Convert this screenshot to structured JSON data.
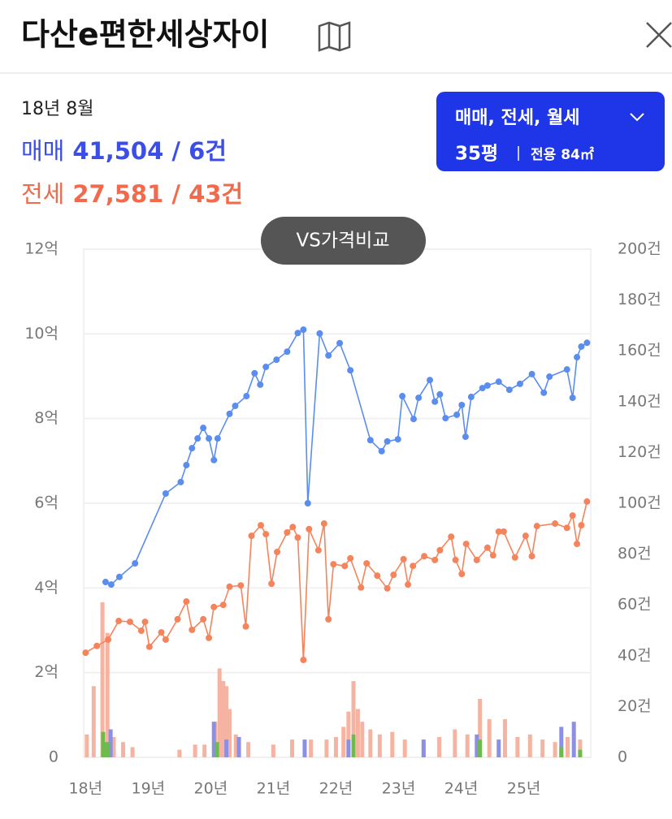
{
  "header": {
    "title": "다산e편한세상자이"
  },
  "summary": {
    "date": "18년 8월",
    "rows": [
      {
        "label": "매매",
        "text": "41,504 / 6건",
        "color": "#3b4ee8"
      },
      {
        "label": "전세",
        "text": "27,581 / 43건",
        "color": "#f26a4b"
      }
    ]
  },
  "filter": {
    "types": "매매, 전세, 월세",
    "size": "35평",
    "area": "전용 84㎡"
  },
  "compare_button": "VS가격비교",
  "chart_data": {
    "type": "line",
    "xlim": [
      17.97,
      26.07
    ],
    "xticks": [
      {
        "value": 18,
        "label": "18년"
      },
      {
        "value": 19,
        "label": "19년"
      },
      {
        "value": 20,
        "label": "20년"
      },
      {
        "value": 21,
        "label": "21년"
      },
      {
        "value": 22,
        "label": "22년"
      },
      {
        "value": 23,
        "label": "23년"
      },
      {
        "value": 24,
        "label": "24년"
      },
      {
        "value": 25,
        "label": "25년"
      }
    ],
    "ylim": [
      0,
      12
    ],
    "yticks": [
      0,
      {
        "value": 2,
        "label": "2억"
      },
      {
        "value": 4,
        "label": "4억"
      },
      {
        "value": 6,
        "label": "6억"
      },
      {
        "value": 8,
        "label": "8억"
      },
      {
        "value": 10,
        "label": "10억"
      },
      {
        "value": 12,
        "label": "12억"
      }
    ],
    "y2lim": [
      0,
      200
    ],
    "y2ticks": [
      0,
      {
        "value": 20,
        "label": "20건"
      },
      {
        "value": 40,
        "label": "40건"
      },
      {
        "value": 60,
        "label": "60건"
      },
      {
        "value": 80,
        "label": "80건"
      },
      {
        "value": 100,
        "label": "100건"
      },
      {
        "value": 120,
        "label": "120건"
      },
      {
        "value": 140,
        "label": "140건"
      },
      {
        "value": 160,
        "label": "160건"
      },
      {
        "value": 180,
        "label": "180건"
      },
      {
        "value": 200,
        "label": "200건"
      }
    ],
    "grid": true,
    "series": [
      {
        "type": "bar",
        "axis": "y2",
        "color": "#f5b3a2",
        "x": [
          18.02,
          18.13,
          18.27,
          18.35,
          18.45,
          18.6,
          18.75,
          19.5,
          19.75,
          19.9,
          20.07,
          20.14,
          20.2,
          20.25,
          20.3,
          20.4,
          20.6,
          21.0,
          21.3,
          21.6,
          21.85,
          22.0,
          22.12,
          22.2,
          22.28,
          22.35,
          22.42,
          22.55,
          22.7,
          22.9,
          23.1,
          23.4,
          23.65,
          23.9,
          24.1,
          24.3,
          24.45,
          24.7,
          24.9,
          25.1,
          25.3,
          25.5,
          25.7,
          25.9
        ],
        "values": [
          9,
          28,
          61,
          49,
          8,
          6,
          4,
          3,
          5,
          5,
          14,
          35,
          30,
          28,
          19,
          9,
          6,
          5,
          7,
          7,
          7,
          8,
          12,
          18,
          30,
          19,
          14,
          11,
          9,
          10,
          7,
          6,
          8,
          11,
          9,
          23,
          15,
          15,
          8,
          9,
          7,
          6,
          8,
          7
        ]
      },
      {
        "type": "bar",
        "axis": "y2",
        "color": "#8c8fe6",
        "x": [
          18.3,
          18.4,
          20.05,
          20.25,
          20.45,
          21.5,
          22.2,
          23.4,
          24.25,
          24.6,
          25.6,
          25.8
        ],
        "values": [
          6,
          11,
          14,
          7,
          8,
          7,
          7,
          7,
          9,
          7,
          12,
          14
        ]
      },
      {
        "type": "bar",
        "axis": "y2",
        "color": "#6dbb4a",
        "x": [
          18.28,
          18.35,
          20.1,
          22.28,
          24.3,
          25.6,
          25.9
        ],
        "values": [
          10,
          6,
          6,
          9,
          7,
          4,
          3
        ]
      },
      {
        "type": "line",
        "color": "#5b8def",
        "x": [
          18.32,
          18.41,
          18.54,
          18.79,
          19.28,
          19.52,
          19.61,
          19.7,
          19.79,
          19.88,
          19.97,
          20.05,
          20.11,
          20.3,
          20.39,
          20.57,
          20.7,
          20.79,
          20.88,
          21.05,
          21.22,
          21.39,
          21.48,
          21.55,
          21.74,
          21.88,
          22.06,
          22.23,
          22.55,
          22.73,
          22.82,
          22.99,
          23.06,
          23.24,
          23.32,
          23.5,
          23.58,
          23.66,
          23.75,
          23.93,
          24.01,
          24.07,
          24.16,
          24.34,
          24.42,
          24.6,
          24.77,
          24.94,
          25.13,
          25.32,
          25.41,
          25.69,
          25.78,
          25.85,
          25.92,
          26.01
        ],
        "values": [
          4.14,
          4.08,
          4.26,
          4.58,
          6.23,
          6.5,
          6.9,
          7.3,
          7.53,
          7.78,
          7.53,
          7.02,
          7.53,
          8.11,
          8.3,
          8.53,
          9.07,
          8.8,
          9.22,
          9.39,
          9.58,
          10.02,
          10.1,
          6.0,
          10.01,
          9.49,
          9.78,
          9.14,
          7.49,
          7.23,
          7.46,
          7.51,
          8.53,
          7.99,
          8.49,
          8.91,
          8.4,
          8.57,
          8.01,
          8.09,
          8.32,
          7.57,
          8.51,
          8.72,
          8.78,
          8.87,
          8.68,
          8.82,
          9.05,
          8.61,
          8.99,
          9.16,
          8.49,
          9.45,
          9.7,
          9.79
        ]
      },
      {
        "type": "line",
        "color": "#f5845c",
        "x": [
          18.0,
          18.18,
          18.36,
          18.53,
          18.71,
          18.89,
          18.95,
          19.02,
          19.21,
          19.28,
          19.47,
          19.61,
          19.7,
          19.88,
          19.97,
          20.05,
          20.2,
          20.3,
          20.48,
          20.56,
          20.65,
          20.8,
          20.88,
          20.97,
          21.06,
          21.22,
          21.31,
          21.39,
          21.48,
          21.57,
          21.72,
          21.81,
          21.88,
          21.96,
          22.14,
          22.23,
          22.4,
          22.49,
          22.66,
          22.82,
          22.92,
          23.08,
          23.15,
          23.23,
          23.41,
          23.58,
          23.66,
          23.84,
          23.91,
          24.01,
          24.08,
          24.25,
          24.42,
          24.51,
          24.6,
          24.68,
          24.86,
          25.03,
          25.13,
          25.21,
          25.5,
          25.69,
          25.78,
          25.85,
          25.92,
          26.01
        ],
        "values": [
          2.47,
          2.63,
          2.78,
          3.22,
          3.2,
          2.99,
          3.2,
          2.61,
          2.95,
          2.78,
          3.26,
          3.68,
          3.01,
          3.26,
          2.82,
          3.55,
          3.6,
          4.03,
          4.06,
          3.09,
          5.23,
          5.48,
          5.27,
          4.1,
          4.85,
          5.31,
          5.44,
          5.19,
          2.3,
          5.39,
          4.89,
          5.52,
          3.26,
          4.56,
          4.52,
          4.7,
          4.01,
          4.58,
          4.29,
          3.99,
          4.31,
          4.68,
          4.08,
          4.52,
          4.75,
          4.66,
          4.89,
          5.21,
          4.66,
          4.33,
          5.04,
          4.66,
          4.95,
          4.77,
          5.33,
          5.33,
          4.72,
          5.23,
          4.75,
          5.46,
          5.52,
          5.42,
          5.71,
          5.04,
          5.48,
          6.04
        ]
      }
    ]
  }
}
